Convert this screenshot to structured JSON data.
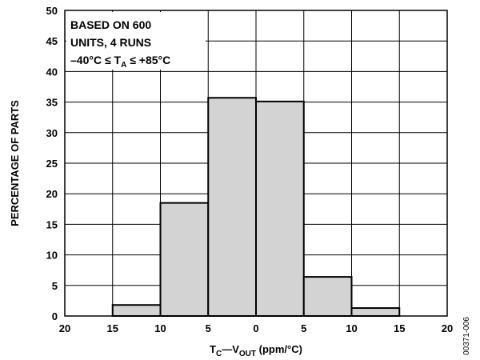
{
  "chart_data": {
    "type": "bar",
    "subtype": "histogram",
    "title": "",
    "xlabel": {
      "main1": "T",
      "sub1": "C",
      "main2": "—V",
      "sub2": "OUT",
      "main3": " (ppm/°C)"
    },
    "ylabel": "PERCENTAGE OF PARTS",
    "x_tick_labels": [
      "20",
      "15",
      "10",
      "5",
      "0",
      "5",
      "10",
      "15",
      "20"
    ],
    "x_tick_values": [
      -20,
      -15,
      -10,
      -5,
      0,
      5,
      10,
      15,
      20
    ],
    "y_tick_labels": [
      "0",
      "5",
      "10",
      "15",
      "20",
      "25",
      "30",
      "35",
      "40",
      "45",
      "50"
    ],
    "xlim": [
      -20,
      20
    ],
    "ylim": [
      0,
      50
    ],
    "grid": true,
    "bins": [
      {
        "from": -15,
        "to": -10,
        "value": 1.8
      },
      {
        "from": -10,
        "to": -5,
        "value": 18.5
      },
      {
        "from": -5,
        "to": 0,
        "value": 35.7
      },
      {
        "from": 0,
        "to": 5,
        "value": 35.1
      },
      {
        "from": 5,
        "to": 10,
        "value": 6.4
      },
      {
        "from": 10,
        "to": 15,
        "value": 1.3
      }
    ],
    "bar_color": "#d3d3d3",
    "annotation": {
      "line1": "BASED ON 600",
      "line2": "UNITS, 4 RUNS",
      "line3_a": "–40°C ≤ T",
      "line3_sub": "A",
      "line3_b": " ≤ +85°C"
    },
    "figure_id": "00371-006"
  }
}
